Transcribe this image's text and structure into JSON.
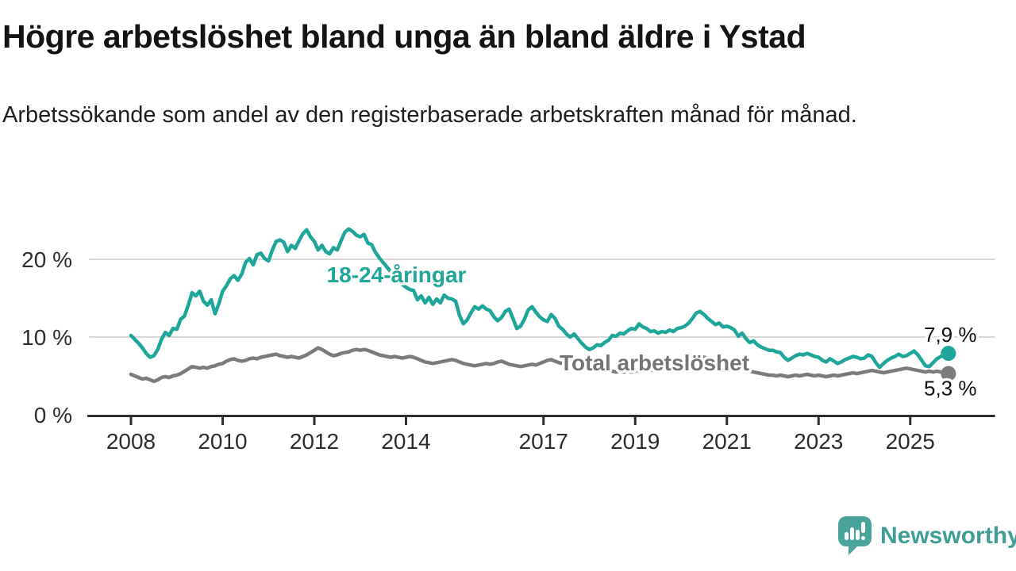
{
  "header": {
    "title": "Högre arbetslöshet bland unga än bland äldre i Ystad",
    "subtitle": "Arbetssökande som andel av den registerbaserade arbetskraften månad för månad."
  },
  "chart_data": {
    "type": "line",
    "unit": "%",
    "x_axis_extent": [
      2007.05,
      2026.85
    ],
    "ylim": [
      0,
      26
    ],
    "grid": "horizontal-only",
    "x_ticks": [
      2008,
      2010,
      2012,
      2014,
      2017,
      2019,
      2021,
      2023,
      2025
    ],
    "y_ticks": [
      {
        "value": 0,
        "label": "0 %"
      },
      {
        "value": 10,
        "label": "10 %"
      },
      {
        "value": 20,
        "label": "20 %"
      }
    ],
    "series": [
      {
        "name": "Total arbetslöshet",
        "color": "#7b7b7b",
        "end_label": "5,3 %",
        "start_year": 2008,
        "points_per_year": 12,
        "monthly_values": [
          5.2,
          5.0,
          4.8,
          4.6,
          4.7,
          4.5,
          4.3,
          4.5,
          4.8,
          4.9,
          4.8,
          5.0,
          5.1,
          5.3,
          5.6,
          5.9,
          6.2,
          6.1,
          6.0,
          6.1,
          6.0,
          6.2,
          6.3,
          6.5,
          6.6,
          6.9,
          7.1,
          7.2,
          7.0,
          6.9,
          7.0,
          7.2,
          7.3,
          7.2,
          7.4,
          7.5,
          7.6,
          7.7,
          7.8,
          7.6,
          7.5,
          7.4,
          7.5,
          7.4,
          7.3,
          7.5,
          7.7,
          8.0,
          8.3,
          8.6,
          8.4,
          8.1,
          7.8,
          7.6,
          7.7,
          7.9,
          8.0,
          8.1,
          8.3,
          8.4,
          8.3,
          8.4,
          8.3,
          8.1,
          7.9,
          7.7,
          7.6,
          7.5,
          7.4,
          7.5,
          7.4,
          7.3,
          7.4,
          7.5,
          7.4,
          7.2,
          7.0,
          6.8,
          6.7,
          6.6,
          6.7,
          6.8,
          6.9,
          7.0,
          7.1,
          7.0,
          6.8,
          6.6,
          6.5,
          6.4,
          6.3,
          6.4,
          6.5,
          6.6,
          6.5,
          6.6,
          6.8,
          6.9,
          6.7,
          6.5,
          6.4,
          6.3,
          6.2,
          6.3,
          6.4,
          6.5,
          6.4,
          6.6,
          6.8,
          7.0,
          7.1,
          6.9,
          6.7,
          6.6,
          6.4,
          6.3,
          6.2,
          6.1,
          6.0,
          5.9,
          5.8,
          5.7,
          5.8,
          5.7,
          5.6,
          5.7,
          5.6,
          5.5,
          5.6,
          5.5,
          5.6,
          5.5,
          5.6,
          5.7,
          5.6,
          5.7,
          5.8,
          5.7,
          5.8,
          5.9,
          5.8,
          5.9,
          6.0,
          6.1,
          6.2,
          6.4,
          6.8,
          7.2,
          7.4,
          7.5,
          7.4,
          7.3,
          7.2,
          7.0,
          6.9,
          6.8,
          6.7,
          6.6,
          6.4,
          6.2,
          6.0,
          5.8,
          5.6,
          5.5,
          5.4,
          5.3,
          5.2,
          5.1,
          5.1,
          5.0,
          5.1,
          5.0,
          4.9,
          5.0,
          5.1,
          5.0,
          5.1,
          5.2,
          5.1,
          5.0,
          5.1,
          5.0,
          4.9,
          5.0,
          5.1,
          5.0,
          5.1,
          5.2,
          5.3,
          5.4,
          5.3,
          5.4,
          5.5,
          5.6,
          5.7,
          5.6,
          5.5,
          5.4,
          5.5,
          5.6,
          5.7,
          5.8,
          5.9,
          6.0,
          5.9,
          5.8,
          5.7,
          5.6,
          5.5,
          5.6,
          5.5,
          5.6,
          5.5,
          5.4,
          5.3
        ]
      },
      {
        "name": "18-24-åringar",
        "color": "#1fa69a",
        "end_label": "7,9 %",
        "start_year": 2008,
        "points_per_year": 12,
        "monthly_values": [
          10.2,
          9.7,
          9.2,
          8.6,
          7.9,
          7.4,
          7.6,
          8.4,
          9.7,
          10.6,
          10.2,
          11.1,
          11.0,
          12.3,
          12.7,
          14.1,
          15.7,
          15.3,
          15.9,
          14.6,
          14.1,
          14.8,
          13.0,
          14.3,
          15.9,
          16.6,
          17.5,
          17.9,
          17.3,
          18.1,
          19.6,
          20.1,
          19.3,
          20.6,
          20.8,
          20.1,
          19.8,
          21.2,
          22.3,
          22.5,
          22.2,
          21.0,
          21.8,
          21.4,
          22.4,
          23.3,
          23.8,
          22.9,
          22.3,
          21.2,
          21.8,
          21.0,
          20.7,
          21.5,
          21.2,
          22.4,
          23.5,
          23.9,
          23.6,
          23.1,
          22.9,
          23.2,
          22.1,
          21.9,
          20.9,
          20.2,
          19.6,
          19.0,
          18.4,
          17.8,
          17.3,
          16.8,
          16.4,
          16.1,
          16.0,
          14.8,
          15.3,
          14.4,
          15.1,
          14.2,
          14.9,
          14.4,
          15.4,
          15.0,
          14.9,
          14.6,
          12.8,
          11.7,
          12.2,
          13.1,
          13.9,
          13.6,
          14.0,
          13.6,
          13.4,
          12.6,
          12.1,
          12.5,
          13.3,
          13.6,
          12.4,
          11.1,
          11.4,
          12.3,
          13.5,
          13.9,
          13.2,
          12.6,
          12.2,
          12.0,
          12.9,
          12.4,
          11.4,
          11.0,
          10.4,
          10.0,
          10.4,
          9.8,
          9.2,
          8.7,
          8.4,
          8.6,
          9.0,
          8.9,
          9.3,
          9.6,
          10.2,
          10.1,
          10.5,
          10.4,
          10.8,
          11.1,
          11.0,
          11.7,
          11.3,
          11.1,
          10.7,
          10.8,
          10.5,
          10.7,
          10.6,
          10.9,
          10.7,
          11.1,
          11.2,
          11.4,
          11.8,
          12.4,
          13.1,
          13.3,
          12.9,
          12.4,
          12.0,
          11.6,
          11.8,
          11.3,
          11.4,
          11.2,
          10.9,
          10.1,
          10.5,
          9.8,
          9.3,
          9.5,
          9.0,
          8.7,
          8.5,
          8.3,
          8.3,
          8.1,
          8.0,
          7.4,
          7.0,
          7.3,
          7.6,
          7.8,
          7.7,
          7.9,
          7.7,
          7.5,
          7.4,
          7.0,
          6.8,
          7.2,
          6.9,
          6.6,
          6.8,
          7.1,
          7.3,
          7.5,
          7.4,
          7.2,
          7.3,
          7.7,
          7.5,
          6.7,
          6.1,
          6.6,
          7.0,
          7.3,
          7.5,
          7.8,
          7.5,
          7.6,
          7.9,
          8.2,
          7.7,
          7.0,
          6.3,
          6.2,
          6.7,
          7.2,
          7.5,
          7.7,
          7.9
        ]
      }
    ],
    "annotations": [
      {
        "text": "18-24-åringar",
        "x": 2012.27,
        "y": 17.05,
        "anchor": "start",
        "color": "#1fa69a",
        "bold": true,
        "size": 28
      },
      {
        "text": "Total arbetslöshet",
        "x": 2017.35,
        "y": 5.7,
        "anchor": "start",
        "color": "#757575",
        "bold": true,
        "size": 28
      },
      {
        "text": "7,9 %",
        "x": 2026.45,
        "y": 9.4,
        "anchor": "end",
        "color": "#111111",
        "bold": false,
        "size": 26
      },
      {
        "text": "5,3 %",
        "x": 2026.45,
        "y": 2.5,
        "anchor": "end",
        "color": "#111111",
        "bold": false,
        "size": 26
      }
    ],
    "colors": {
      "axis": "#2e2e2e",
      "gridline": "#d8d8d8",
      "tick_text": "#2d2d2d"
    }
  },
  "logo": {
    "text": "Newsworthy",
    "icon": "bar-chart-speech-bubble-icon",
    "icon_color": "#4ba49c",
    "text_color": "#3f9f97"
  }
}
